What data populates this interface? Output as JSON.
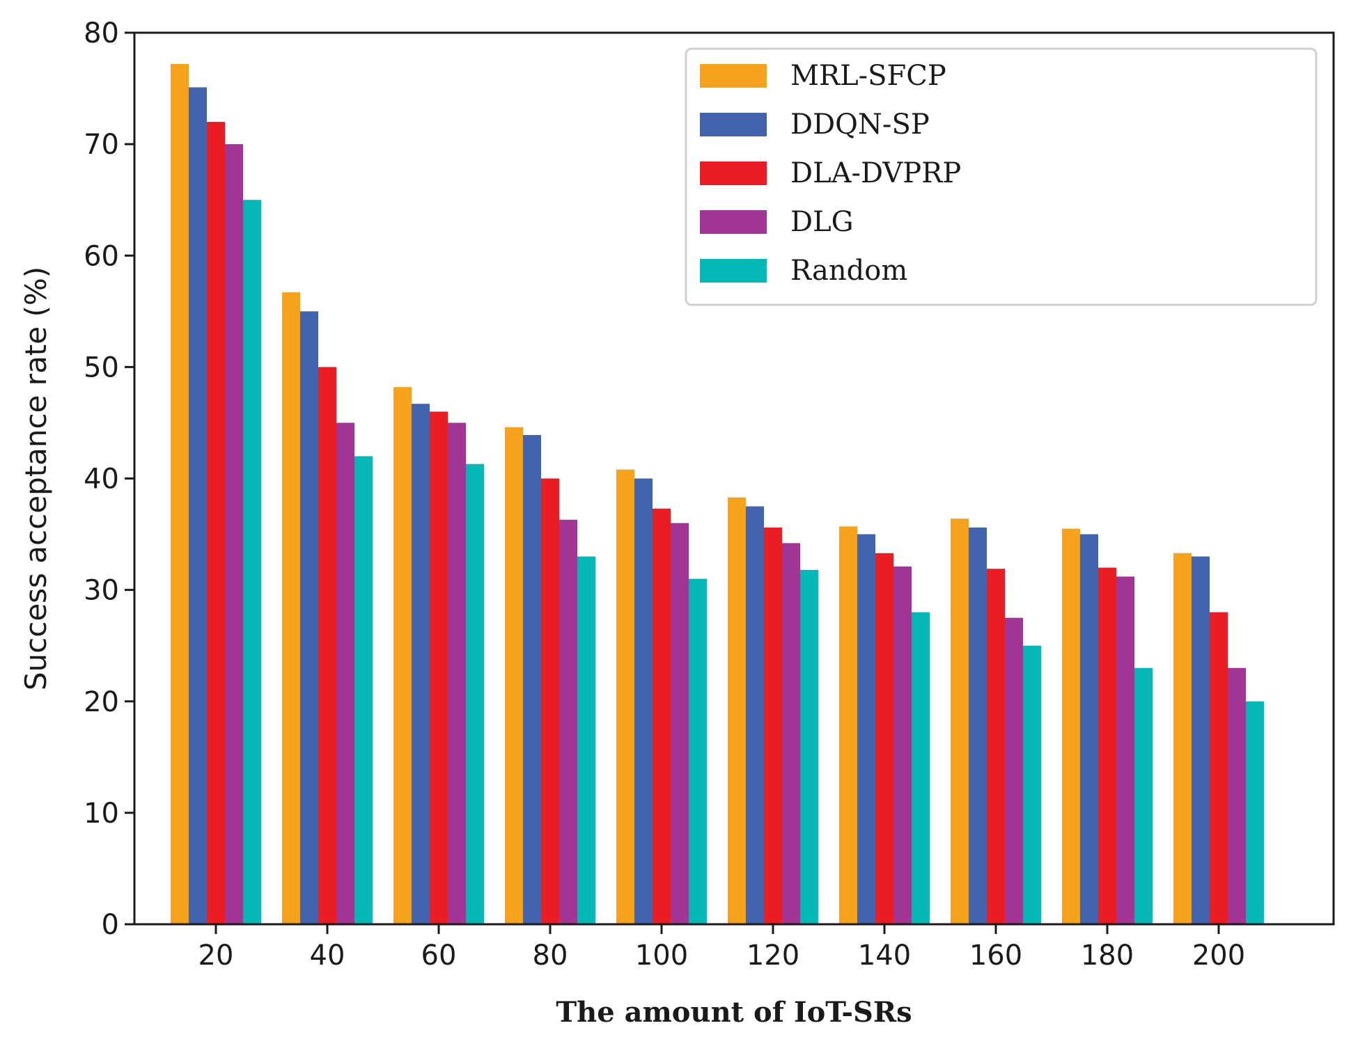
{
  "chart_data": {
    "type": "bar",
    "title": "",
    "xlabel": "The amount of IoT-SRs",
    "ylabel": "Success acceptance rate (%)",
    "ylim": [
      0,
      80
    ],
    "yticks": [
      0,
      10,
      20,
      30,
      40,
      50,
      60,
      70,
      80
    ],
    "categories": [
      "20",
      "40",
      "60",
      "80",
      "100",
      "120",
      "140",
      "160",
      "180",
      "200"
    ],
    "legend_position": "top-right",
    "grid": false,
    "series": [
      {
        "name": "MRL-SFCP",
        "color": "#f7a21d",
        "values": [
          77.2,
          56.7,
          48.2,
          44.6,
          40.8,
          38.3,
          35.7,
          36.4,
          35.5,
          33.3
        ]
      },
      {
        "name": "DDQN-SP",
        "color": "#4263ae",
        "values": [
          75.1,
          55.0,
          46.7,
          43.9,
          40.0,
          37.5,
          35.0,
          35.6,
          35.0,
          33.0
        ]
      },
      {
        "name": "DLA-DVPRP",
        "color": "#ec1c24",
        "values": [
          72.0,
          50.0,
          46.0,
          40.0,
          37.3,
          35.6,
          33.3,
          31.9,
          32.0,
          28.0
        ]
      },
      {
        "name": "DLG",
        "color": "#a03593",
        "values": [
          70.0,
          45.0,
          45.0,
          36.3,
          36.0,
          34.2,
          32.1,
          27.5,
          31.2,
          23.0
        ]
      },
      {
        "name": "Random",
        "color": "#04b8b8",
        "values": [
          65.0,
          42.0,
          41.3,
          33.0,
          31.0,
          31.8,
          28.0,
          25.0,
          23.0,
          20.0
        ]
      }
    ]
  }
}
